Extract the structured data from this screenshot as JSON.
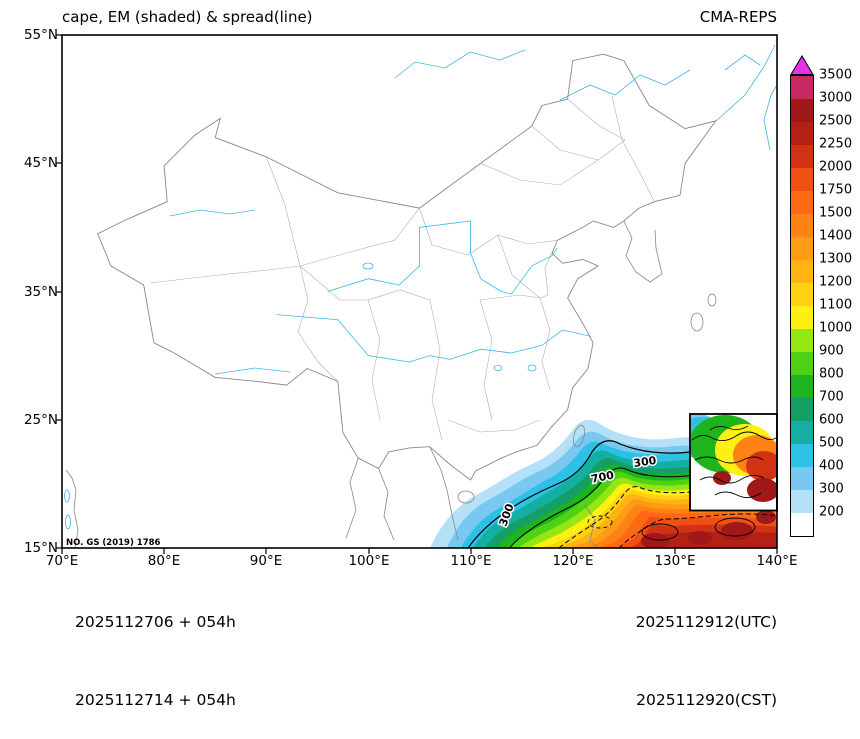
{
  "header": {
    "title": "cape, EM (shaded) & spread(line)",
    "model": "CMA-REPS"
  },
  "axes": {
    "x_ticks": [
      "70°E",
      "80°E",
      "90°E",
      "100°E",
      "110°E",
      "120°E",
      "130°E",
      "140°E"
    ],
    "y_ticks": [
      "55°N",
      "45°N",
      "35°N",
      "25°N",
      "15°N"
    ]
  },
  "map": {
    "note": "NO. GS (2019) 1786",
    "contour_labels": {
      "a": "300",
      "b": "700",
      "c": "300"
    }
  },
  "colorbar": {
    "over_color": "#E632E6",
    "boundaries": [
      {
        "label": "3500",
        "color": "#C82864"
      },
      {
        "label": "3000",
        "color": "#A01818"
      },
      {
        "label": "2500",
        "color": "#B42014"
      },
      {
        "label": "2250",
        "color": "#D23214"
      },
      {
        "label": "2000",
        "color": "#F05014"
      },
      {
        "label": "1750",
        "color": "#FF6914"
      },
      {
        "label": "1500",
        "color": "#FF8214"
      },
      {
        "label": "1400",
        "color": "#FF9B14"
      },
      {
        "label": "1300",
        "color": "#FFB414"
      },
      {
        "label": "1200",
        "color": "#FFD214"
      },
      {
        "label": "1100",
        "color": "#FFF014"
      },
      {
        "label": "1000",
        "color": "#96E614"
      },
      {
        "label": "900",
        "color": "#50D214"
      },
      {
        "label": "800",
        "color": "#1EB41E"
      },
      {
        "label": "700",
        "color": "#14A064"
      },
      {
        "label": "600",
        "color": "#14AFA0"
      },
      {
        "label": "500",
        "color": "#2EC1E6"
      },
      {
        "label": "400",
        "color": "#78C8F0"
      },
      {
        "label": "300",
        "color": "#B4E1F8"
      },
      {
        "label": "200",
        "color": "#FFFFFF"
      }
    ]
  },
  "footer": {
    "init_utc": "2025112706 + 054h",
    "init_cst": "2025112714 + 054h",
    "valid_utc": "2025112912(UTC)",
    "valid_cst": "2025112920(CST)"
  }
}
